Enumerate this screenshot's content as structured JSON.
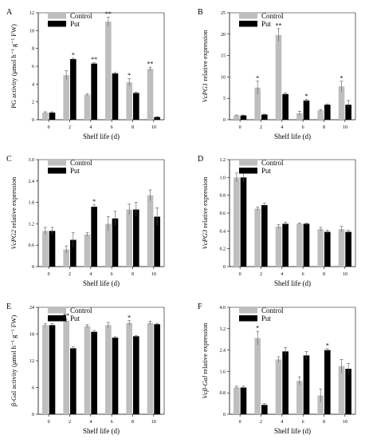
{
  "colors": {
    "control": "#bebebe",
    "put": "#000000",
    "axis": "#000000"
  },
  "chart_data": [
    {
      "panel": "A",
      "type": "bar",
      "categories": [
        "0",
        "2",
        "4",
        "6",
        "8",
        "10"
      ],
      "xlabel": "Shelf life (d)",
      "ylabel": "PG activity (μmol h⁻¹ g⁻¹ FW)",
      "ylim": [
        0,
        12
      ],
      "yticks": [
        0,
        2,
        4,
        6,
        8,
        10,
        12
      ],
      "legend": "top-left",
      "series": [
        {
          "name": "Control",
          "values": [
            0.8,
            5.0,
            2.8,
            11.0,
            4.2,
            5.7
          ],
          "errors": [
            0.1,
            0.5,
            0.1,
            0.5,
            0.4,
            0.2
          ],
          "marks": [
            "",
            "",
            "",
            "**",
            "*",
            "**"
          ]
        },
        {
          "name": "Put",
          "values": [
            0.8,
            6.8,
            6.3,
            5.2,
            3.0,
            0.3
          ],
          "errors": [
            0.1,
            0.1,
            0.1,
            0.1,
            0.1,
            0.05
          ],
          "marks": [
            "",
            "*",
            "**",
            "",
            "",
            ""
          ]
        }
      ]
    },
    {
      "panel": "B",
      "type": "bar",
      "categories": [
        "0",
        "2",
        "4",
        "6",
        "8",
        "10"
      ],
      "xlabel": "Shelf life (d)",
      "ylabel": "VcPG1 relative expression",
      "ylim": [
        0,
        25
      ],
      "yticks": [
        0,
        5,
        10,
        15,
        20,
        25
      ],
      "legend": "top-left",
      "series": [
        {
          "name": "Control",
          "values": [
            1.0,
            7.5,
            19.8,
            1.5,
            2.2,
            7.8
          ],
          "errors": [
            0.1,
            1.5,
            1.5,
            0.5,
            0.2,
            1.2
          ],
          "marks": [
            "",
            "*",
            "**",
            "",
            "",
            "*"
          ]
        },
        {
          "name": "Put",
          "values": [
            1.0,
            1.2,
            6.0,
            4.5,
            3.5,
            3.5
          ],
          "errors": [
            0.1,
            0.1,
            0.3,
            0.3,
            0.2,
            1.0
          ],
          "marks": [
            "",
            "",
            "",
            "*",
            "",
            ""
          ]
        }
      ]
    },
    {
      "panel": "C",
      "type": "bar",
      "categories": [
        "0",
        "2",
        "4",
        "6",
        "8",
        "10"
      ],
      "xlabel": "Shelf life (d)",
      "ylabel": "VcPG2 relative expression",
      "ylim": [
        0,
        3
      ],
      "yticks": [
        0,
        0.6,
        1.2,
        1.8,
        2.4,
        3.0
      ],
      "ytick_labels": [
        "0",
        "0.6",
        "1.2",
        "1.8",
        "2.4",
        "3.0"
      ],
      "legend": "top-left",
      "series": [
        {
          "name": "Control",
          "values": [
            1.0,
            0.48,
            0.9,
            1.2,
            1.6,
            2.0
          ],
          "errors": [
            0.1,
            0.1,
            0.05,
            0.2,
            0.15,
            0.15
          ],
          "marks": [
            "",
            "",
            "",
            "",
            "",
            ""
          ]
        },
        {
          "name": "Put",
          "values": [
            1.0,
            0.75,
            1.68,
            1.35,
            1.6,
            1.4
          ],
          "errors": [
            0.1,
            0.2,
            0.05,
            0.2,
            0.2,
            0.25
          ],
          "marks": [
            "",
            "",
            "*",
            "",
            "",
            ""
          ]
        }
      ]
    },
    {
      "panel": "D",
      "type": "bar",
      "categories": [
        "0",
        "2",
        "4",
        "6",
        "8",
        "10"
      ],
      "xlabel": "Shelf life (d)",
      "ylabel": "VcPG3 relative expression",
      "ylim": [
        0,
        1.2
      ],
      "yticks": [
        0,
        0.2,
        0.4,
        0.6,
        0.8,
        1.0,
        1.2
      ],
      "ytick_labels": [
        "0",
        "0.2",
        "0.4",
        "0.6",
        "0.8",
        "1.0",
        "1.2"
      ],
      "legend": "top-left",
      "series": [
        {
          "name": "Control",
          "values": [
            1.0,
            0.65,
            0.45,
            0.48,
            0.42,
            0.42
          ],
          "errors": [
            0.05,
            0.02,
            0.02,
            0.01,
            0.02,
            0.03
          ],
          "marks": [
            "",
            "",
            "",
            "",
            "",
            ""
          ]
        },
        {
          "name": "Put",
          "values": [
            1.0,
            0.69,
            0.48,
            0.48,
            0.39,
            0.39
          ],
          "errors": [
            0.05,
            0.02,
            0.02,
            0.01,
            0.02,
            0.02
          ],
          "marks": [
            "",
            "",
            "",
            "",
            "",
            ""
          ]
        }
      ]
    },
    {
      "panel": "E",
      "type": "bar",
      "categories": [
        "0",
        "2",
        "4",
        "6",
        "8",
        "10"
      ],
      "xlabel": "Shelf life (d)",
      "ylabel": "β-Gal activity (μmol h⁻¹ g⁻¹ FW)",
      "ylim": [
        0,
        24
      ],
      "yticks": [
        0,
        6,
        12,
        18,
        24
      ],
      "legend": "top-left",
      "series": [
        {
          "name": "Control",
          "values": [
            20.0,
            21.0,
            19.8,
            20.0,
            20.5,
            20.5
          ],
          "errors": [
            0.3,
            0.4,
            0.3,
            0.6,
            0.5,
            0.4
          ],
          "marks": [
            "",
            "**",
            "",
            "",
            "*",
            ""
          ]
        },
        {
          "name": "Put",
          "values": [
            20.0,
            14.8,
            18.5,
            17.2,
            17.5,
            20.2
          ],
          "errors": [
            0.3,
            0.3,
            0.3,
            0.2,
            0.2,
            0.2
          ],
          "marks": [
            "",
            "",
            "",
            "",
            "",
            ""
          ]
        }
      ]
    },
    {
      "panel": "F",
      "type": "bar",
      "categories": [
        "0",
        "2",
        "4",
        "6",
        "8",
        "10"
      ],
      "xlabel": "Shelf life (d)",
      "ylabel": "Vcβ-Gal relative expression",
      "ylim": [
        0,
        4
      ],
      "yticks": [
        0,
        0.8,
        1.6,
        2.4,
        3.2,
        4.0
      ],
      "ytick_labels": [
        "0",
        "0.8",
        "1.6",
        "2.4",
        "3.2",
        "4.0"
      ],
      "legend": "top-left",
      "series": [
        {
          "name": "Control",
          "values": [
            1.0,
            2.85,
            2.05,
            1.25,
            0.7,
            1.8
          ],
          "errors": [
            0.05,
            0.25,
            0.1,
            0.15,
            0.25,
            0.25
          ],
          "marks": [
            "",
            "*",
            "",
            "",
            "",
            ""
          ]
        },
        {
          "name": "Put",
          "values": [
            1.0,
            0.35,
            2.35,
            2.2,
            2.4,
            1.7
          ],
          "errors": [
            0.05,
            0.05,
            0.15,
            0.15,
            0.05,
            0.2
          ],
          "marks": [
            "",
            "",
            "",
            "",
            "*",
            ""
          ]
        }
      ]
    }
  ]
}
